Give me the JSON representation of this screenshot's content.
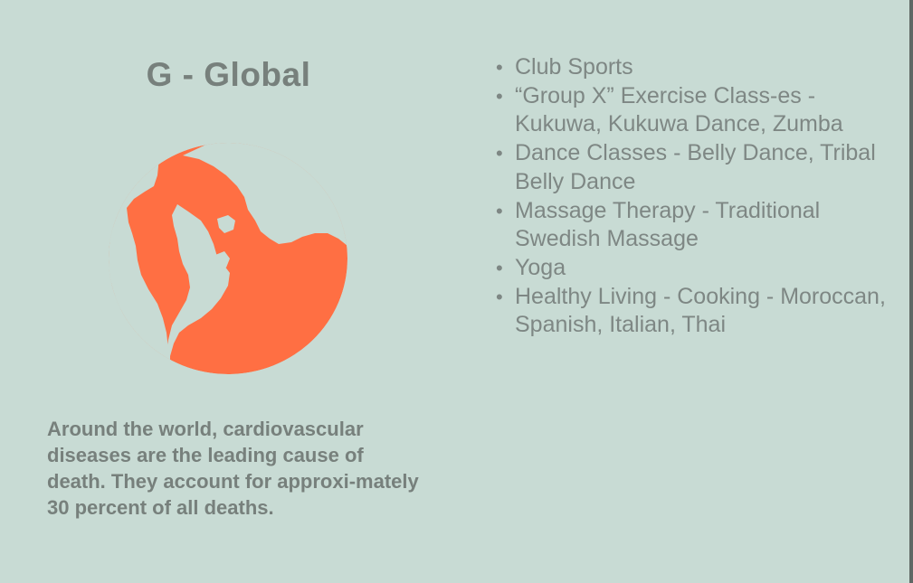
{
  "section": {
    "title": "G - Global",
    "icon": "globe-icon",
    "accent_color": "#ff6f43",
    "background_color": "#c8dbd4",
    "text_color": "#77807c"
  },
  "fact": {
    "text": "Around the world, cardiovascular diseases are the leading cause of death. They account for approxi-mately 30 percent of all deaths."
  },
  "activities": [
    "Club Sports",
    "“Group X” Exercise Class-es - Kukuwa,  Kukuwa Dance, Zumba",
    "Dance Classes - Belly Dance, Tribal Belly Dance",
    "Massage Therapy - Traditional Swedish Massage",
    "Yoga",
    "Healthy Living - Cooking - Moroccan, Spanish, Italian, Thai"
  ]
}
